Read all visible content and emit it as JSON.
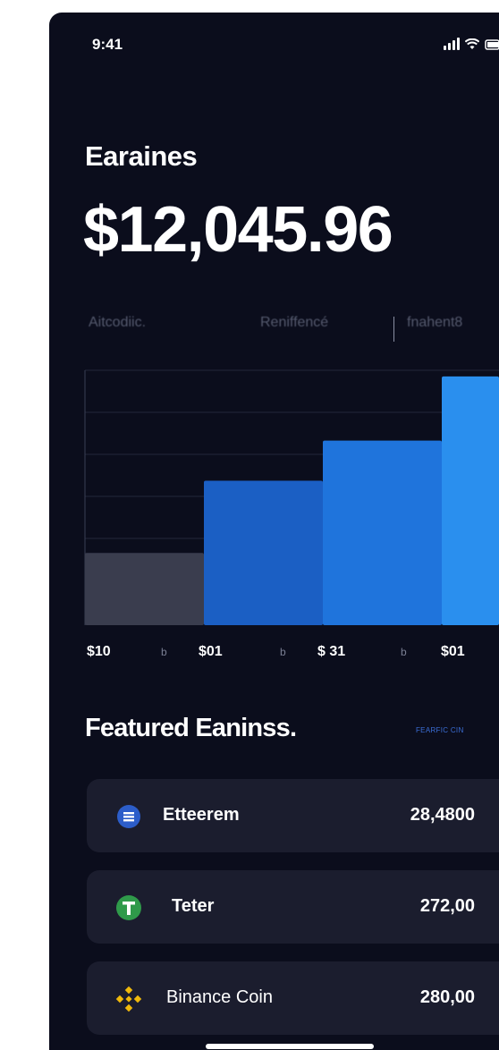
{
  "status_bar": {
    "time": "9:41"
  },
  "header": {
    "title": "Earaines",
    "amount": "$12,045.96"
  },
  "tabs": [
    {
      "label": "Aitcodiic."
    },
    {
      "label": "Reniffencé"
    },
    {
      "label": "fnahent8"
    }
  ],
  "chart_data": {
    "type": "bar",
    "categories": [
      "$10",
      "$01",
      "$ 31",
      "$01"
    ],
    "values": [
      18,
      36,
      46,
      62
    ],
    "ylim": [
      0,
      68
    ],
    "grid": true,
    "colors": [
      "#3a3d4e",
      "#1b5fc4",
      "#1f74dc",
      "#2a8fee"
    ],
    "xlabel": "",
    "ylabel": ""
  },
  "x_axis": {
    "labels": [
      "$10",
      "$01",
      "$ 31",
      "$01"
    ],
    "separator": "b"
  },
  "featured": {
    "title": "Featured Eaninss.",
    "link_label": "FEARFIC CIN"
  },
  "coins": [
    {
      "name": "Etteerem",
      "value": "28,4800",
      "icon": "ethereum-icon",
      "color": "#2c5dc9"
    },
    {
      "name": "Teter",
      "value": "272,00",
      "icon": "tether-icon",
      "color": "#2f9a4a"
    },
    {
      "name": "Binance Coin",
      "value": "280,00",
      "icon": "binance-icon",
      "color": "#f0b90b"
    }
  ]
}
